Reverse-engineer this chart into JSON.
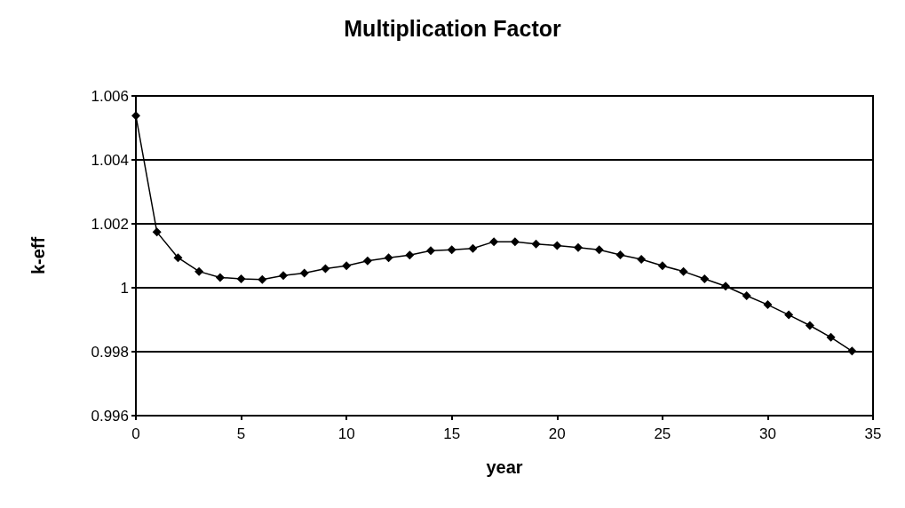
{
  "chart_data": {
    "type": "line",
    "title": "Multiplication Factor",
    "xlabel": "year",
    "ylabel": "k-eff",
    "x": [
      0,
      1,
      2,
      3,
      4,
      5,
      6,
      7,
      8,
      9,
      10,
      11,
      12,
      13,
      14,
      15,
      16,
      17,
      18,
      19,
      20,
      21,
      22,
      23,
      24,
      25,
      26,
      27,
      28,
      29,
      30,
      31,
      32,
      33,
      34
    ],
    "series": [
      {
        "color": "#000000",
        "values": [
          1.00538,
          1.00174,
          1.00094,
          1.00051,
          1.00032,
          1.00028,
          1.00026,
          1.00038,
          1.00046,
          1.0006,
          1.00069,
          1.00084,
          1.00094,
          1.00102,
          1.00116,
          1.00119,
          1.00123,
          1.00144,
          1.00144,
          1.00137,
          1.00132,
          1.00126,
          1.00119,
          1.00103,
          1.00089,
          1.00069,
          1.00051,
          1.00028,
          1.00005,
          0.99975,
          0.99947,
          0.99915,
          0.99882,
          0.99845,
          0.99802
        ]
      }
    ],
    "xlim": [
      0,
      35
    ],
    "xticks": [
      0,
      5,
      10,
      15,
      20,
      25,
      30,
      35
    ],
    "ylim": [
      0.996,
      1.006
    ],
    "yticks": [
      0.996,
      0.998,
      1,
      1.002,
      1.004,
      1.006
    ],
    "grid": "y",
    "marker": "diamond",
    "line_style": "solid"
  }
}
